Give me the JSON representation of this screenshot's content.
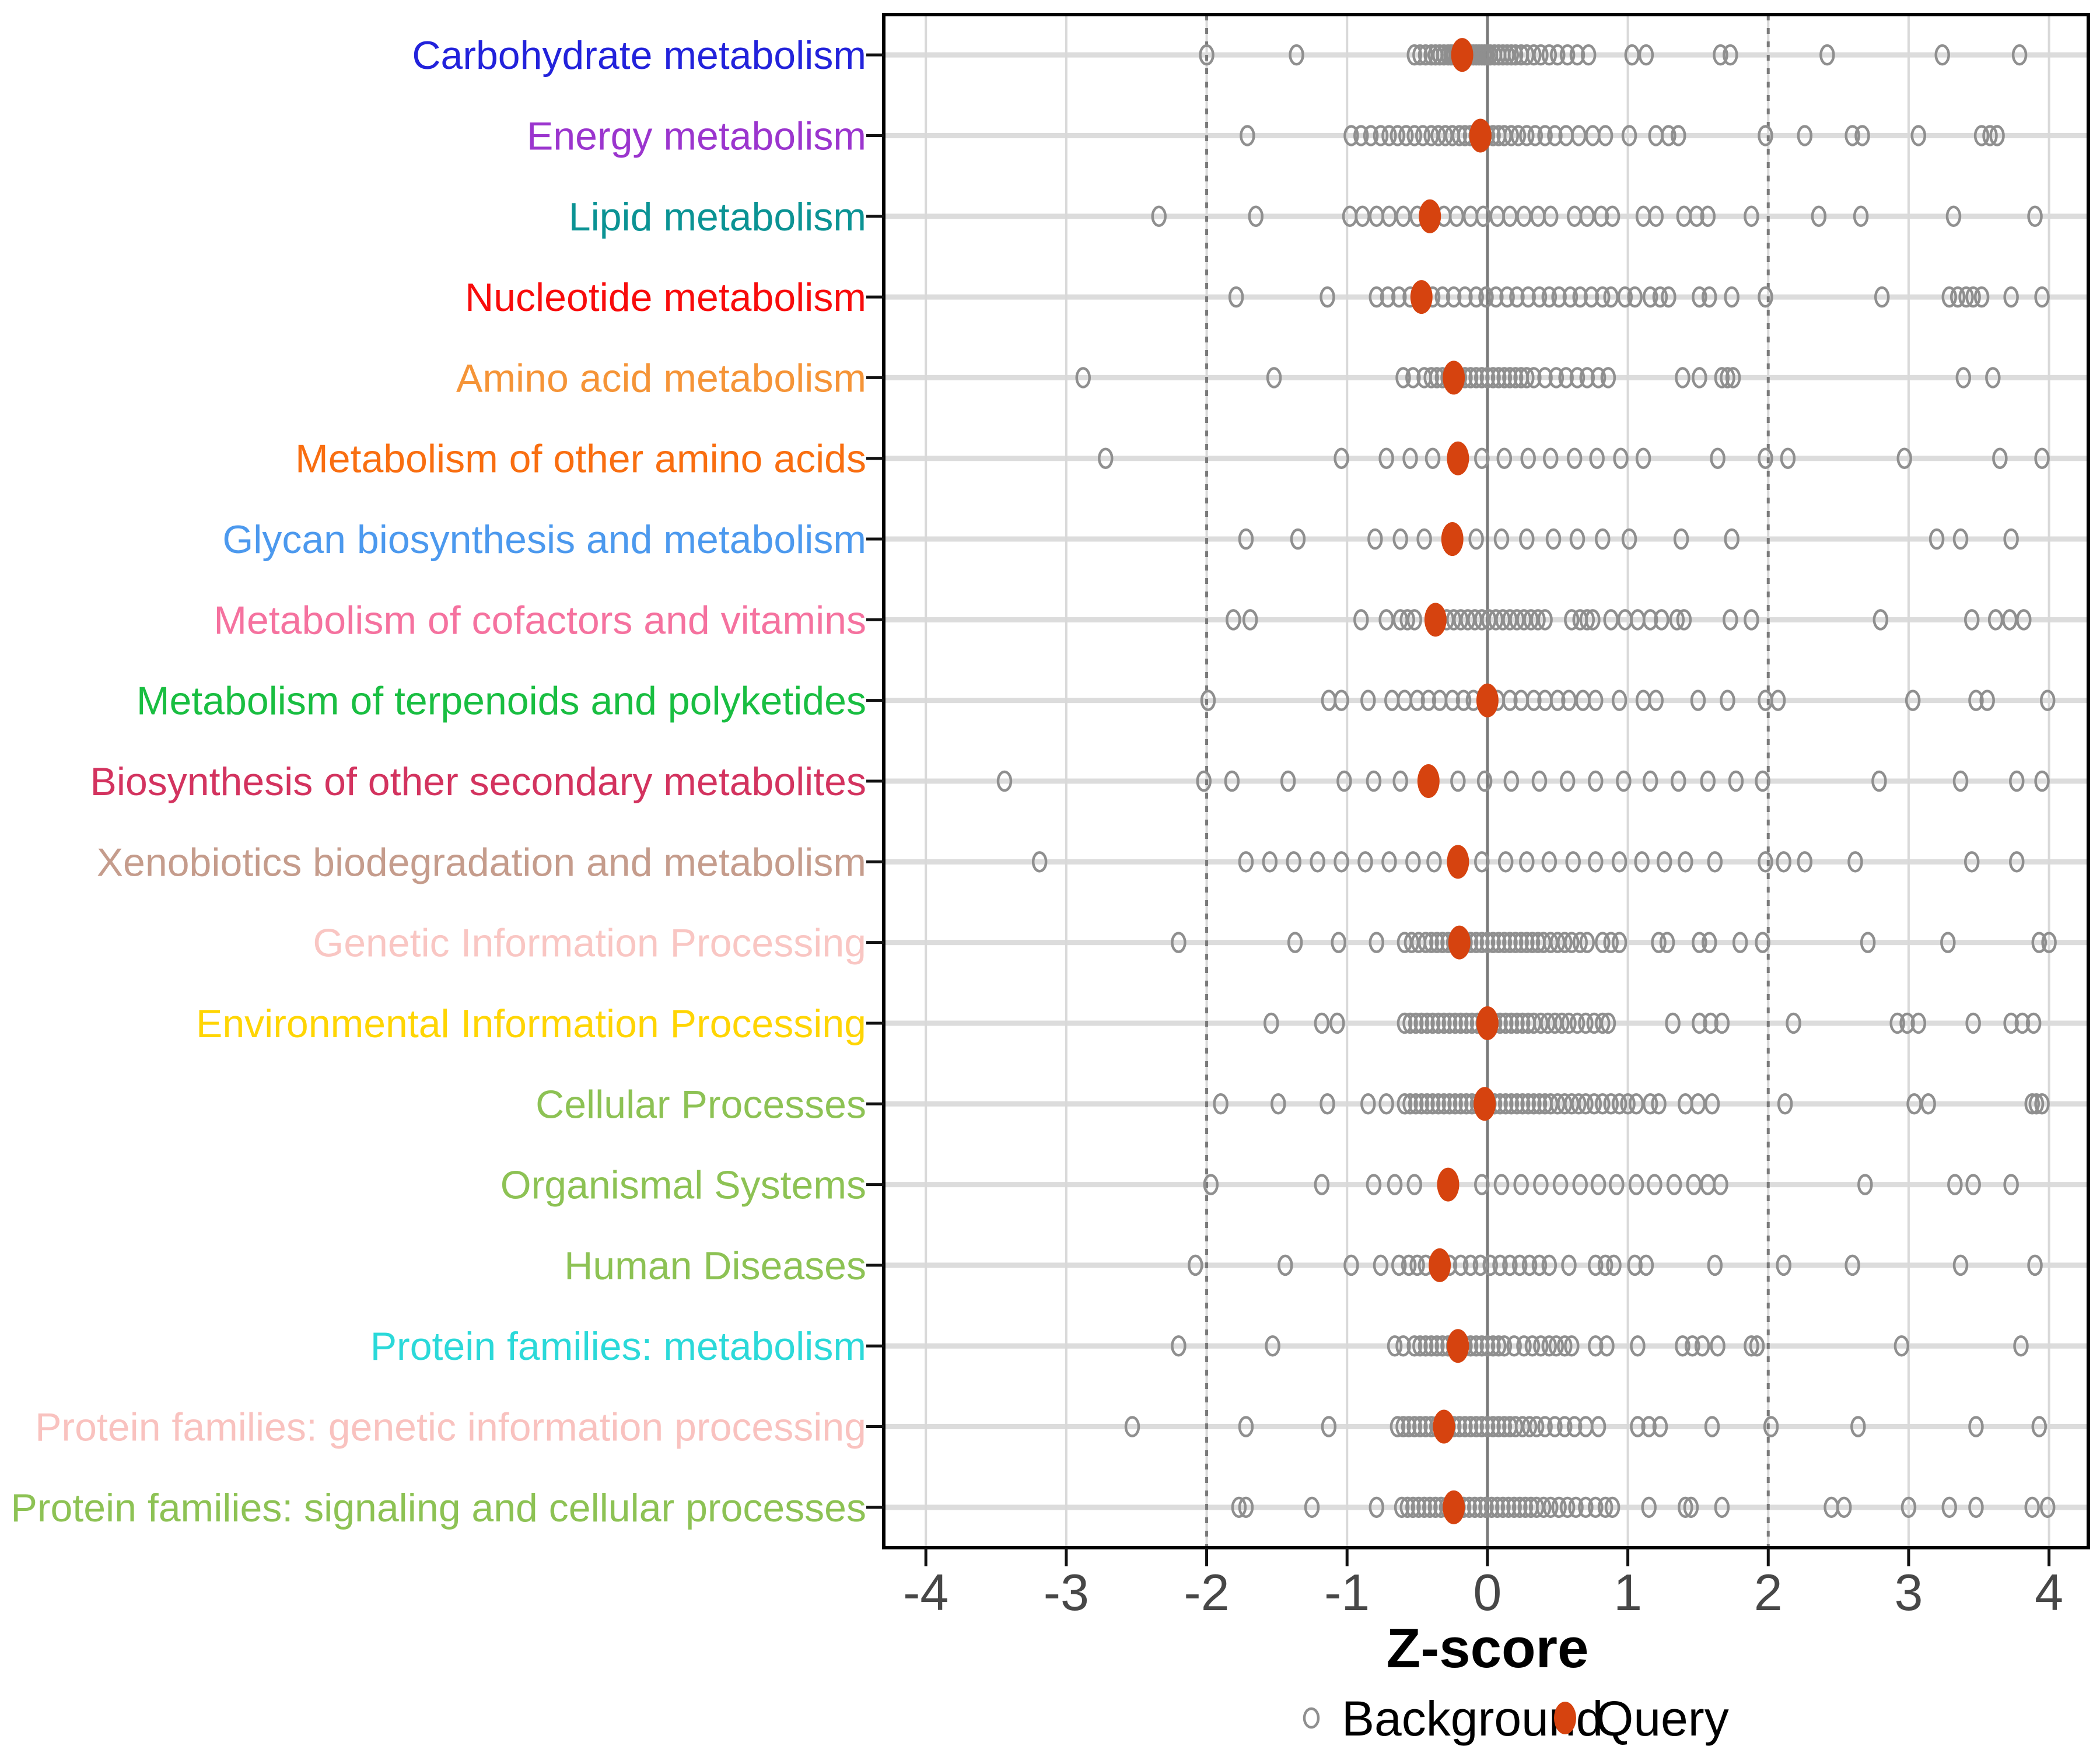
{
  "chart_data": {
    "type": "scatter",
    "title": "",
    "xlabel": "Z-score",
    "xlim": [
      -4.3,
      4.28
    ],
    "x_ticks": [
      -4,
      -3,
      -2,
      -1,
      0,
      1,
      2,
      3,
      4
    ],
    "grid": true,
    "reference_lines": {
      "solid": [
        0
      ],
      "dashed": [
        -2,
        2
      ]
    },
    "legend": {
      "background": "Background",
      "query": "Query",
      "position": "bottom-center"
    },
    "colors": {
      "query": "#D6430F",
      "background_marker": "#8F8F8F",
      "row_gridline": "#DCDCDC",
      "x_gridline": "#D9D9D9",
      "reference_line": "#7A7A7A",
      "panel_border": "#000000",
      "tick_label": "#474747",
      "axis_title": "#000000"
    },
    "categories": [
      {
        "label": "Carbohydrate metabolism",
        "color": "#2222DB",
        "query": -0.18,
        "background": [
          -2.0,
          -1.36,
          -0.52,
          -0.48,
          -0.44,
          -0.4,
          -0.37,
          -0.34,
          -0.31,
          -0.28,
          -0.26,
          -0.24,
          -0.22,
          -0.2,
          -0.18,
          -0.16,
          -0.14,
          -0.12,
          -0.1,
          -0.08,
          -0.06,
          -0.04,
          -0.02,
          0.0,
          0.02,
          0.05,
          0.08,
          0.11,
          0.14,
          0.17,
          0.2,
          0.24,
          0.28,
          0.33,
          0.38,
          0.44,
          0.5,
          0.57,
          0.64,
          0.72,
          1.03,
          1.13,
          1.66,
          1.73,
          2.42,
          3.24,
          3.79
        ]
      },
      {
        "label": "Energy metabolism",
        "color": "#9B35CE",
        "query": -0.05,
        "background": [
          -1.71,
          -0.97,
          -0.9,
          -0.83,
          -0.76,
          -0.7,
          -0.64,
          -0.58,
          -0.52,
          -0.46,
          -0.4,
          -0.35,
          -0.3,
          -0.25,
          -0.2,
          -0.16,
          -0.12,
          -0.08,
          -0.04,
          0.0,
          0.04,
          0.08,
          0.12,
          0.17,
          0.22,
          0.28,
          0.34,
          0.41,
          0.48,
          0.56,
          0.65,
          0.75,
          0.84,
          1.01,
          1.2,
          1.29,
          1.36,
          1.98,
          2.26,
          2.6,
          2.67,
          3.07,
          3.52,
          3.58,
          3.63
        ]
      },
      {
        "label": "Lipid metabolism",
        "color": "#0B9394",
        "query": -0.41,
        "background": [
          -2.34,
          -1.65,
          -0.98,
          -0.89,
          -0.79,
          -0.7,
          -0.6,
          -0.5,
          -0.31,
          -0.22,
          -0.12,
          -0.03,
          0.07,
          0.16,
          0.26,
          0.36,
          0.45,
          0.62,
          0.71,
          0.81,
          0.89,
          1.11,
          1.2,
          1.4,
          1.49,
          1.57,
          1.88,
          2.36,
          2.66,
          3.32,
          3.9
        ]
      },
      {
        "label": "Nucleotide metabolism",
        "color": "#F80B0B",
        "query": -0.47,
        "background": [
          -1.79,
          -1.14,
          -0.79,
          -0.71,
          -0.63,
          -0.55,
          -0.39,
          -0.32,
          -0.24,
          -0.16,
          -0.08,
          -0.01,
          0.06,
          0.14,
          0.21,
          0.29,
          0.37,
          0.44,
          0.51,
          0.59,
          0.66,
          0.74,
          0.82,
          0.88,
          0.98,
          1.05,
          1.16,
          1.23,
          1.29,
          1.51,
          1.58,
          1.74,
          1.98,
          2.81,
          3.29,
          3.35,
          3.41,
          3.46,
          3.52,
          3.73,
          3.95
        ]
      },
      {
        "label": "Amino acid metabolism",
        "color": "#F59437",
        "query": -0.24,
        "background": [
          -2.88,
          -1.52,
          -0.6,
          -0.53,
          -0.45,
          -0.4,
          -0.36,
          -0.32,
          -0.28,
          -0.24,
          -0.2,
          -0.16,
          -0.12,
          -0.08,
          -0.04,
          0.0,
          0.04,
          0.08,
          0.12,
          0.16,
          0.2,
          0.24,
          0.28,
          0.33,
          0.41,
          0.49,
          0.56,
          0.64,
          0.71,
          0.79,
          0.86,
          1.39,
          1.51,
          1.67,
          1.71,
          1.75,
          3.39,
          3.6
        ]
      },
      {
        "label": "Metabolism of other amino acids",
        "color": "#F96E10",
        "query": -0.21,
        "background": [
          -2.72,
          -1.04,
          -0.72,
          -0.55,
          -0.39,
          -0.04,
          0.12,
          0.29,
          0.45,
          0.62,
          0.78,
          0.95,
          1.11,
          1.64,
          1.98,
          2.14,
          2.97,
          3.65,
          3.95
        ]
      },
      {
        "label": "Glycan biosynthesis and metabolism",
        "color": "#4C99EE",
        "query": -0.25,
        "background": [
          -1.72,
          -1.35,
          -0.8,
          -0.62,
          -0.45,
          -0.08,
          0.1,
          0.28,
          0.47,
          0.64,
          0.82,
          1.01,
          1.38,
          1.74,
          3.2,
          3.37,
          3.73
        ]
      },
      {
        "label": "Metabolism of cofactors and vitamins",
        "color": "#F5729F",
        "query": -0.37,
        "background": [
          -1.81,
          -1.69,
          -0.9,
          -0.72,
          -0.62,
          -0.57,
          -0.52,
          -0.29,
          -0.24,
          -0.19,
          -0.14,
          -0.09,
          -0.04,
          0.01,
          0.06,
          0.11,
          0.16,
          0.21,
          0.26,
          0.31,
          0.36,
          0.41,
          0.6,
          0.66,
          0.71,
          0.75,
          0.88,
          0.98,
          1.07,
          1.16,
          1.24,
          1.35,
          1.4,
          1.73,
          1.88,
          2.8,
          3.45,
          3.62,
          3.72,
          3.82
        ]
      },
      {
        "label": "Metabolism of terpenoids and polyketides",
        "color": "#19BE41",
        "query": 0.0,
        "background": [
          -1.99,
          -1.13,
          -1.04,
          -0.85,
          -0.68,
          -0.59,
          -0.5,
          -0.42,
          -0.34,
          -0.25,
          -0.17,
          -0.1,
          0.07,
          0.16,
          0.24,
          0.33,
          0.41,
          0.5,
          0.58,
          0.68,
          0.77,
          0.94,
          1.11,
          1.2,
          1.5,
          1.71,
          1.98,
          2.07,
          3.03,
          3.48,
          3.56,
          3.99
        ]
      },
      {
        "label": "Biosynthesis of other secondary metabolites",
        "color": "#D3335F",
        "query": -0.42,
        "background": [
          -3.44,
          -2.02,
          -1.82,
          -1.42,
          -1.02,
          -0.81,
          -0.62,
          -0.21,
          -0.02,
          0.17,
          0.37,
          0.57,
          0.77,
          0.97,
          1.16,
          1.36,
          1.57,
          1.77,
          1.96,
          2.79,
          3.37,
          3.77,
          3.95
        ]
      },
      {
        "label": "Xenobiotics biodegradation and metabolism",
        "color": "#C59C8C",
        "query": -0.21,
        "background": [
          -3.19,
          -1.72,
          -1.55,
          -1.38,
          -1.21,
          -1.04,
          -0.87,
          -0.7,
          -0.53,
          -0.38,
          -0.04,
          0.13,
          0.28,
          0.44,
          0.61,
          0.77,
          0.94,
          1.1,
          1.26,
          1.41,
          1.62,
          1.98,
          2.11,
          2.26,
          2.62,
          3.45,
          3.77
        ]
      },
      {
        "label": "Genetic Information Processing",
        "color": "#F9C6C3",
        "query": -0.2,
        "background": [
          -2.2,
          -1.37,
          -1.06,
          -0.79,
          -0.59,
          -0.54,
          -0.49,
          -0.44,
          -0.4,
          -0.36,
          -0.32,
          -0.28,
          -0.24,
          -0.16,
          -0.12,
          -0.08,
          -0.04,
          0.0,
          0.04,
          0.08,
          0.12,
          0.16,
          0.2,
          0.24,
          0.28,
          0.32,
          0.36,
          0.4,
          0.45,
          0.5,
          0.55,
          0.6,
          0.66,
          0.71,
          0.82,
          0.88,
          0.94,
          1.22,
          1.28,
          1.51,
          1.58,
          1.8,
          1.96,
          2.71,
          3.28,
          3.93,
          4.0
        ]
      },
      {
        "label": "Environmental Information Processing",
        "color": "#FFD503",
        "query": 0.0,
        "background": [
          -1.54,
          -1.18,
          -1.07,
          -0.59,
          -0.55,
          -0.51,
          -0.47,
          -0.43,
          -0.39,
          -0.35,
          -0.31,
          -0.27,
          -0.23,
          -0.19,
          -0.15,
          -0.11,
          -0.07,
          -0.03,
          0.01,
          0.05,
          0.09,
          0.13,
          0.17,
          0.21,
          0.25,
          0.29,
          0.33,
          0.38,
          0.43,
          0.48,
          0.53,
          0.58,
          0.64,
          0.7,
          0.76,
          0.82,
          0.86,
          1.32,
          1.51,
          1.59,
          1.67,
          2.18,
          2.92,
          2.99,
          3.07,
          3.46,
          3.73,
          3.81,
          3.89
        ]
      },
      {
        "label": "Cellular Processes",
        "color": "#8DC254",
        "query": -0.02,
        "background": [
          -1.9,
          -1.49,
          -1.14,
          -0.85,
          -0.72,
          -0.59,
          -0.55,
          -0.51,
          -0.47,
          -0.43,
          -0.39,
          -0.35,
          -0.31,
          -0.27,
          -0.23,
          -0.19,
          -0.15,
          -0.11,
          -0.07,
          -0.03,
          0.01,
          0.05,
          0.09,
          0.13,
          0.17,
          0.21,
          0.25,
          0.29,
          0.33,
          0.37,
          0.41,
          0.45,
          0.5,
          0.55,
          0.6,
          0.65,
          0.7,
          0.76,
          0.82,
          0.88,
          0.94,
          1.0,
          1.06,
          1.16,
          1.22,
          1.41,
          1.5,
          1.6,
          2.12,
          3.04,
          3.14,
          3.88,
          3.91,
          3.95
        ]
      },
      {
        "label": "Organismal Systems",
        "color": "#8DC254",
        "query": -0.28,
        "background": [
          -1.97,
          -1.18,
          -0.81,
          -0.66,
          -0.52,
          -0.04,
          0.1,
          0.24,
          0.38,
          0.52,
          0.66,
          0.79,
          0.92,
          1.06,
          1.19,
          1.33,
          1.47,
          1.57,
          1.66,
          2.69,
          3.33,
          3.46,
          3.73
        ]
      },
      {
        "label": "Human Diseases",
        "color": "#8DC254",
        "query": -0.34,
        "background": [
          -2.08,
          -1.44,
          -0.97,
          -0.76,
          -0.63,
          -0.56,
          -0.5,
          -0.44,
          -0.27,
          -0.19,
          -0.12,
          -0.05,
          0.02,
          0.09,
          0.16,
          0.23,
          0.3,
          0.37,
          0.44,
          0.58,
          0.77,
          0.84,
          0.9,
          1.05,
          1.13,
          1.62,
          2.11,
          2.6,
          3.37,
          3.9
        ]
      },
      {
        "label": "Protein families: metabolism",
        "color": "#2BD9D9",
        "query": -0.21,
        "background": [
          -2.2,
          -1.53,
          -0.66,
          -0.6,
          -0.52,
          -0.48,
          -0.44,
          -0.4,
          -0.36,
          -0.32,
          -0.28,
          -0.24,
          -0.16,
          -0.12,
          -0.08,
          -0.04,
          0.0,
          0.04,
          0.08,
          0.12,
          0.19,
          0.26,
          0.32,
          0.38,
          0.44,
          0.49,
          0.55,
          0.6,
          0.77,
          0.85,
          1.07,
          1.39,
          1.46,
          1.53,
          1.64,
          1.88,
          1.92,
          2.95,
          3.8
        ]
      },
      {
        "label": "Protein families: genetic information processing",
        "color": "#F9C2BF",
        "query": -0.31,
        "background": [
          -2.53,
          -1.72,
          -1.13,
          -0.64,
          -0.6,
          -0.56,
          -0.52,
          -0.48,
          -0.44,
          -0.4,
          -0.36,
          -0.32,
          -0.28,
          -0.24,
          -0.2,
          -0.16,
          -0.12,
          -0.08,
          -0.04,
          0.0,
          0.04,
          0.08,
          0.12,
          0.16,
          0.2,
          0.25,
          0.3,
          0.35,
          0.41,
          0.48,
          0.55,
          0.62,
          0.7,
          0.79,
          1.07,
          1.15,
          1.23,
          1.6,
          2.02,
          2.64,
          3.48,
          3.93
        ]
      },
      {
        "label": "Protein families: signaling and cellular processes",
        "color": "#8DC254",
        "query": -0.24,
        "background": [
          -1.77,
          -1.72,
          -1.25,
          -0.79,
          -0.61,
          -0.57,
          -0.53,
          -0.49,
          -0.45,
          -0.41,
          -0.37,
          -0.33,
          -0.29,
          -0.25,
          -0.21,
          -0.17,
          -0.13,
          -0.09,
          -0.05,
          -0.01,
          0.03,
          0.07,
          0.11,
          0.15,
          0.19,
          0.23,
          0.27,
          0.31,
          0.35,
          0.4,
          0.45,
          0.51,
          0.57,
          0.63,
          0.7,
          0.77,
          0.84,
          0.89,
          1.15,
          1.41,
          1.45,
          1.67,
          2.45,
          2.54,
          3.0,
          3.29,
          3.48,
          3.88,
          3.99
        ]
      }
    ]
  }
}
